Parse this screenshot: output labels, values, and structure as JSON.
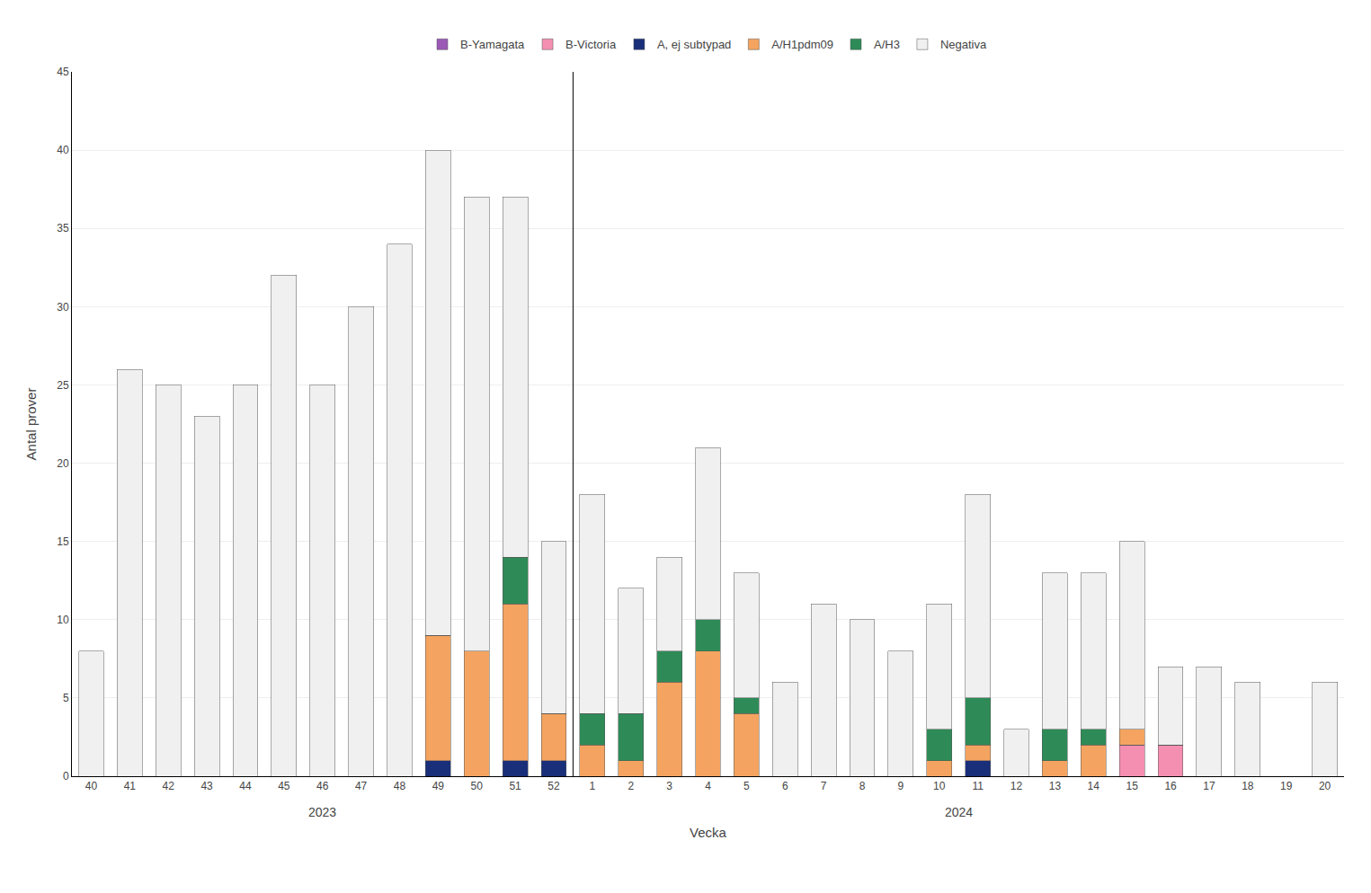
{
  "chart_data": {
    "type": "bar",
    "stacked": true,
    "categories": [
      "40",
      "41",
      "42",
      "43",
      "44",
      "45",
      "46",
      "47",
      "48",
      "49",
      "50",
      "51",
      "52",
      "1",
      "2",
      "3",
      "4",
      "5",
      "6",
      "7",
      "8",
      "9",
      "10",
      "11",
      "12",
      "13",
      "14",
      "15",
      "16",
      "17",
      "18",
      "19",
      "20"
    ],
    "series": [
      {
        "name": "B-Yamagata",
        "color": "#9B59B6",
        "values": [
          0,
          0,
          0,
          0,
          0,
          0,
          0,
          0,
          0,
          0,
          0,
          0,
          0,
          0,
          0,
          0,
          0,
          0,
          0,
          0,
          0,
          0,
          0,
          0,
          0,
          0,
          0,
          0,
          0,
          0,
          0,
          0,
          0
        ]
      },
      {
        "name": "B-Victoria",
        "color": "#F48FB1",
        "values": [
          0,
          0,
          0,
          0,
          0,
          0,
          0,
          0,
          0,
          0,
          0,
          0,
          0,
          0,
          0,
          0,
          0,
          0,
          0,
          0,
          0,
          0,
          0,
          0,
          0,
          0,
          0,
          2,
          2,
          0,
          0,
          0,
          0
        ]
      },
      {
        "name": "A, ej subtypad",
        "color": "#1A2F7A",
        "values": [
          0,
          0,
          0,
          0,
          0,
          0,
          0,
          0,
          0,
          1,
          0,
          1,
          1,
          0,
          0,
          0,
          0,
          0,
          0,
          0,
          0,
          0,
          0,
          1,
          0,
          0,
          0,
          0,
          0,
          0,
          0,
          0,
          0
        ]
      },
      {
        "name": "A/H1pdm09",
        "color": "#F4A460",
        "values": [
          0,
          0,
          0,
          0,
          0,
          0,
          0,
          0,
          0,
          8,
          8,
          10,
          3,
          2,
          1,
          6,
          8,
          4,
          0,
          0,
          0,
          0,
          1,
          1,
          0,
          1,
          2,
          1,
          0,
          0,
          0,
          0,
          0
        ]
      },
      {
        "name": "A/H3",
        "color": "#2E8B57",
        "values": [
          0,
          0,
          0,
          0,
          0,
          0,
          0,
          0,
          0,
          0,
          0,
          3,
          0,
          2,
          3,
          2,
          2,
          1,
          0,
          0,
          0,
          0,
          2,
          3,
          0,
          2,
          1,
          0,
          0,
          0,
          0,
          0,
          0
        ]
      },
      {
        "name": "Negativa",
        "color": "#F0F0F0",
        "values": [
          8,
          26,
          25,
          23,
          25,
          32,
          25,
          30,
          34,
          31,
          29,
          23,
          11,
          14,
          8,
          6,
          11,
          8,
          6,
          11,
          10,
          8,
          8,
          13,
          3,
          10,
          10,
          12,
          5,
          7,
          6,
          0,
          6
        ]
      }
    ],
    "x_label": "Vecka",
    "y_label": "Antal prover",
    "annotations": [
      "2023",
      "2024"
    ],
    "ylim": [
      0,
      45
    ],
    "yticks": [
      0,
      5,
      10,
      15,
      20,
      25,
      30,
      35,
      40,
      45
    ],
    "grid": true,
    "legend": "top"
  }
}
